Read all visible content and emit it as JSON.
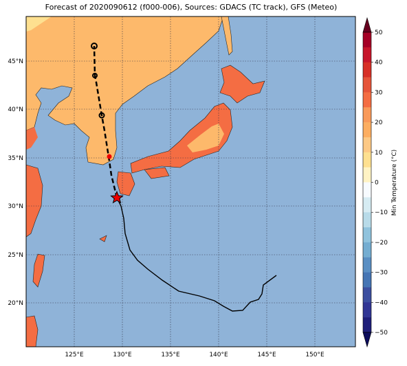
{
  "title": "Forecast of 2020090612 (f000-006), Sources: GDACS (TC track), GFS (Meteo)",
  "lon_labels": [
    "125°E",
    "130°E",
    "135°E",
    "140°E",
    "145°E",
    "150°E"
  ],
  "lat_labels": [
    "45°N",
    "40°N",
    "35°N",
    "30°N",
    "25°N",
    "20°N"
  ],
  "colorbar": {
    "label": "Min Temperature (°C)",
    "ticks": [
      "50",
      "40",
      "30",
      "20",
      "10",
      "0",
      "−10",
      "−20",
      "−30",
      "−40",
      "−50"
    ]
  }
}
